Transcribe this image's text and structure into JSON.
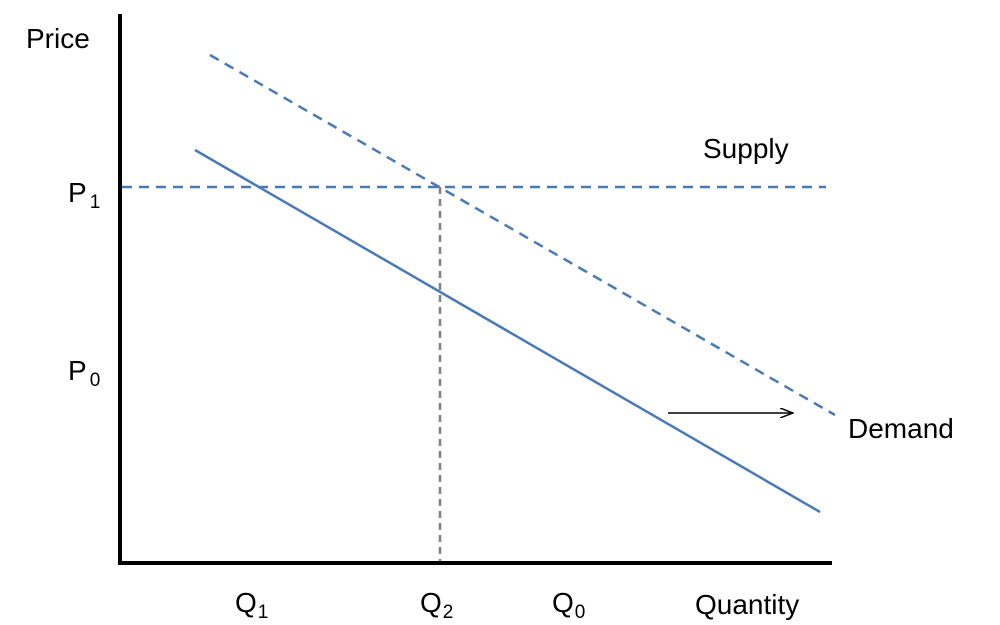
{
  "axes": {
    "y_label": "Price",
    "x_label": "Quantity"
  },
  "curves": {
    "supply": "Supply",
    "demand": "Demand"
  },
  "price_labels": [
    {
      "letter": "P",
      "sub": "1"
    },
    {
      "letter": "P",
      "sub": "0"
    }
  ],
  "quantity_labels": [
    {
      "letter": "Q",
      "sub": "1"
    },
    {
      "letter": "Q",
      "sub": "2"
    },
    {
      "letter": "Q",
      "sub": "0"
    }
  ]
}
